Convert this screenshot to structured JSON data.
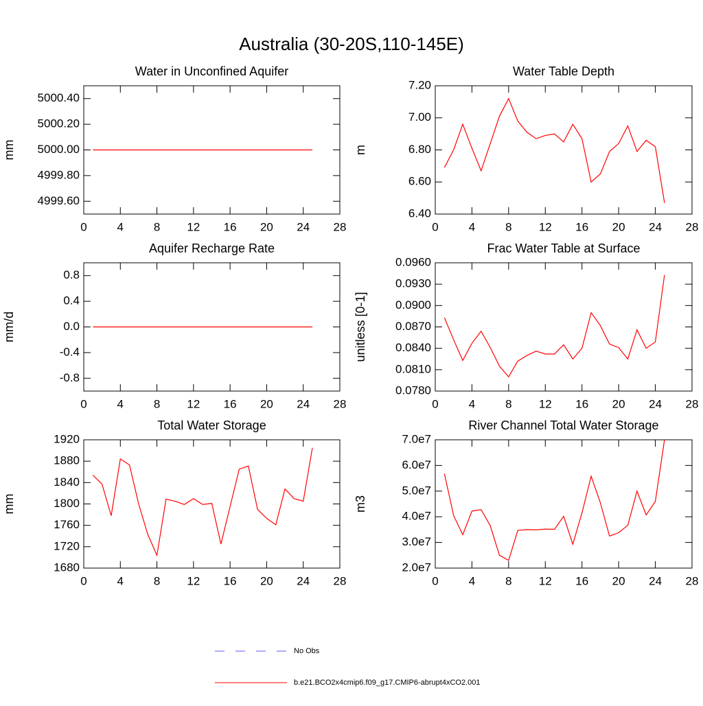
{
  "title": "Australia (30-20S,110-145E)",
  "legend": [
    {
      "label": "No Obs",
      "color": "#5a5aff",
      "style": "dashed"
    },
    {
      "label": "b.e21.BCO2x4cmip6.f09_g17.CMIP6-abrupt4xCO2.001",
      "color": "#ff0000",
      "style": "solid"
    }
  ],
  "chart_data": [
    {
      "type": "line",
      "title": "Water in Unconfined Aquifer",
      "ylabel": "mm",
      "xlim": [
        0,
        28
      ],
      "xticks": [
        0,
        4,
        8,
        12,
        16,
        20,
        24,
        28
      ],
      "ylim": [
        4999.5,
        5000.5
      ],
      "yticks": [
        {
          "value": 4999.6,
          "label": "4999.60"
        },
        {
          "value": 4999.8,
          "label": "4999.80"
        },
        {
          "value": 5000,
          "label": "5000.00"
        },
        {
          "value": 5000.2,
          "label": "5000.20"
        },
        {
          "value": 5000.4,
          "label": "5000.40"
        }
      ],
      "x": [
        1,
        2,
        3,
        4,
        5,
        6,
        7,
        8,
        9,
        10,
        11,
        12,
        13,
        14,
        15,
        16,
        17,
        18,
        19,
        20,
        21,
        22,
        23,
        24,
        25
      ],
      "series": [
        {
          "color": "#ff0000",
          "values": [
            5000,
            5000,
            5000,
            5000,
            5000,
            5000,
            5000,
            5000,
            5000,
            5000,
            5000,
            5000,
            5000,
            5000,
            5000,
            5000,
            5000,
            5000,
            5000,
            5000,
            5000,
            5000,
            5000,
            5000,
            5000
          ]
        }
      ]
    },
    {
      "type": "line",
      "title": "Water Table Depth",
      "ylabel": "m",
      "xlim": [
        0,
        28
      ],
      "xticks": [
        0,
        4,
        8,
        12,
        16,
        20,
        24,
        28
      ],
      "ylim": [
        6.4,
        7.2
      ],
      "yticks": [
        {
          "value": 6.4,
          "label": "6.40"
        },
        {
          "value": 6.6,
          "label": "6.60"
        },
        {
          "value": 6.8,
          "label": "6.80"
        },
        {
          "value": 7.0,
          "label": "7.00"
        },
        {
          "value": 7.2,
          "label": "7.20"
        }
      ],
      "x": [
        1,
        2,
        3,
        4,
        5,
        6,
        7,
        8,
        9,
        10,
        11,
        12,
        13,
        14,
        15,
        16,
        17,
        18,
        19,
        20,
        21,
        22,
        23,
        24,
        25
      ],
      "series": [
        {
          "color": "#ff0000",
          "values": [
            6.69,
            6.8,
            6.96,
            6.81,
            6.67,
            6.84,
            7.01,
            7.12,
            6.98,
            6.91,
            6.87,
            6.89,
            6.9,
            6.85,
            6.96,
            6.87,
            6.6,
            6.65,
            6.79,
            6.84,
            6.95,
            6.79,
            6.86,
            6.82,
            6.47
          ]
        }
      ]
    },
    {
      "type": "line",
      "title": "Aquifer Recharge Rate",
      "ylabel": "mm/d",
      "xlim": [
        0,
        28
      ],
      "xticks": [
        0,
        4,
        8,
        12,
        16,
        20,
        24,
        28
      ],
      "ylim": [
        -1,
        1
      ],
      "yticks": [
        -0.8,
        -0.4,
        {
          "value": 0,
          "label": "0.0"
        },
        0.4,
        0.8
      ],
      "x": [
        1,
        2,
        3,
        4,
        5,
        6,
        7,
        8,
        9,
        10,
        11,
        12,
        13,
        14,
        15,
        16,
        17,
        18,
        19,
        20,
        21,
        22,
        23,
        24,
        25
      ],
      "series": [
        {
          "color": "#ff0000",
          "values": [
            0,
            0,
            0,
            0,
            0,
            0,
            0,
            0,
            0,
            0,
            0,
            0,
            0,
            0,
            0,
            0,
            0,
            0,
            0,
            0,
            0,
            0,
            0,
            0,
            0
          ]
        }
      ]
    },
    {
      "type": "line",
      "title": "Frac Water Table at Surface",
      "ylabel": "unitless [0-1]",
      "xlim": [
        0,
        28
      ],
      "xticks": [
        0,
        4,
        8,
        12,
        16,
        20,
        24,
        28
      ],
      "ylim": [
        0.078,
        0.096
      ],
      "yticks": [
        {
          "value": 0.078,
          "label": "0.0780"
        },
        {
          "value": 0.081,
          "label": "0.0810"
        },
        {
          "value": 0.084,
          "label": "0.0840"
        },
        {
          "value": 0.087,
          "label": "0.0870"
        },
        {
          "value": 0.09,
          "label": "0.0900"
        },
        {
          "value": 0.093,
          "label": "0.0930"
        },
        {
          "value": 0.096,
          "label": "0.0960"
        }
      ],
      "x": [
        1,
        2,
        3,
        4,
        5,
        6,
        7,
        8,
        9,
        10,
        11,
        12,
        13,
        14,
        15,
        16,
        17,
        18,
        19,
        20,
        21,
        22,
        23,
        24,
        25
      ],
      "series": [
        {
          "color": "#ff0000",
          "values": [
            0.0883,
            0.0852,
            0.0823,
            0.0847,
            0.0864,
            0.0841,
            0.0815,
            0.08,
            0.0822,
            0.083,
            0.0836,
            0.0832,
            0.0832,
            0.0845,
            0.0825,
            0.084,
            0.089,
            0.0872,
            0.0846,
            0.0841,
            0.0825,
            0.0866,
            0.084,
            0.0849,
            0.0943
          ]
        }
      ]
    },
    {
      "type": "line",
      "title": "Total Water Storage",
      "ylabel": "mm",
      "xlim": [
        0,
        28
      ],
      "xticks": [
        0,
        4,
        8,
        12,
        16,
        20,
        24,
        28
      ],
      "ylim": [
        1680,
        1920
      ],
      "yticks": [
        1680,
        1720,
        1760,
        1800,
        1840,
        1880,
        1920
      ],
      "x": [
        1,
        2,
        3,
        4,
        5,
        6,
        7,
        8,
        9,
        10,
        11,
        12,
        13,
        14,
        15,
        16,
        17,
        18,
        19,
        20,
        21,
        22,
        23,
        24,
        25
      ],
      "series": [
        {
          "color": "#ff0000",
          "values": [
            1854,
            1837,
            1778,
            1884,
            1873,
            1800,
            1743,
            1704,
            1809,
            1805,
            1799,
            1810,
            1799,
            1801,
            1725,
            1795,
            1865,
            1871,
            1790,
            1773,
            1761,
            1828,
            1810,
            1805,
            1905
          ]
        }
      ]
    },
    {
      "type": "line",
      "title": "River Channel Total Water Storage",
      "ylabel": "m3",
      "xlim": [
        0,
        28
      ],
      "xticks": [
        0,
        4,
        8,
        12,
        16,
        20,
        24,
        28
      ],
      "ylim": [
        20000000,
        70000000
      ],
      "yticks": [
        {
          "value": 20000000,
          "label": "2.0e7"
        },
        {
          "value": 30000000,
          "label": "3.0e7"
        },
        {
          "value": 40000000,
          "label": "4.0e7"
        },
        {
          "value": 50000000,
          "label": "5.0e7"
        },
        {
          "value": 60000000,
          "label": "6.0e7"
        },
        {
          "value": 70000000,
          "label": "7.0e7"
        }
      ],
      "x": [
        1,
        2,
        3,
        4,
        5,
        6,
        7,
        8,
        9,
        10,
        11,
        12,
        13,
        14,
        15,
        16,
        17,
        18,
        19,
        20,
        21,
        22,
        23,
        24,
        25
      ],
      "series": [
        {
          "color": "#ff0000",
          "values": [
            56800000,
            40500000,
            33000000,
            42200000,
            42800000,
            36500000,
            25000000,
            23000000,
            34700000,
            35000000,
            34900000,
            35200000,
            35100000,
            40200000,
            29300000,
            41500000,
            55800000,
            45500000,
            32500000,
            33800000,
            36700000,
            50000000,
            40700000,
            46000000,
            70000000
          ]
        }
      ]
    }
  ]
}
